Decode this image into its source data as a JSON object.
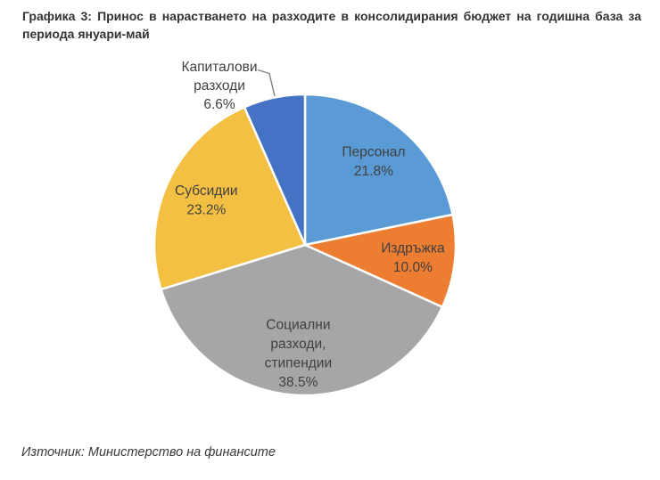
{
  "page": {
    "title": "Графика 3: Принос в нарастването на разходите в консолидирания бюджет на годишна база за периода януари-май",
    "source": "Източник: Министерство на финансите"
  },
  "chart_data": {
    "type": "pie",
    "title": "Принос в нарастването на разходите в консолидирания бюджет на годишна база за периода януари-май",
    "start_angle_deg": 0,
    "direction": "clockwise",
    "legend_position": "none",
    "categories": [
      "Персонал",
      "Издръжка",
      "Социални разходи, стипендии",
      "Субсидии",
      "Капиталови разходи"
    ],
    "values": [
      21.8,
      10.0,
      38.5,
      23.2,
      6.6
    ],
    "slices": [
      {
        "label": "Персонал",
        "value": 21.8,
        "pct_label": "21.8%",
        "color": "#5B9BD5",
        "label_position": "inside"
      },
      {
        "label": "Издръжка",
        "value": 10.0,
        "pct_label": "10.0%",
        "color": "#ED7D31",
        "label_position": "inside"
      },
      {
        "label": "Социални разходи, стипендии",
        "value": 38.5,
        "pct_label": "38.5%",
        "color": "#A6A6A6",
        "label_position": "inside"
      },
      {
        "label": "Субсидии",
        "value": 23.2,
        "pct_label": "23.2%",
        "color": "#F3C043",
        "label_position": "inside"
      },
      {
        "label": "Капиталови разходи",
        "value": 6.6,
        "pct_label": "6.6%",
        "color": "#4472C4",
        "label_position": "outside"
      }
    ],
    "label_text_color": "#404040",
    "leader_line_color": "#7F7F7F",
    "slice_border_color": "#FFFFFF"
  }
}
